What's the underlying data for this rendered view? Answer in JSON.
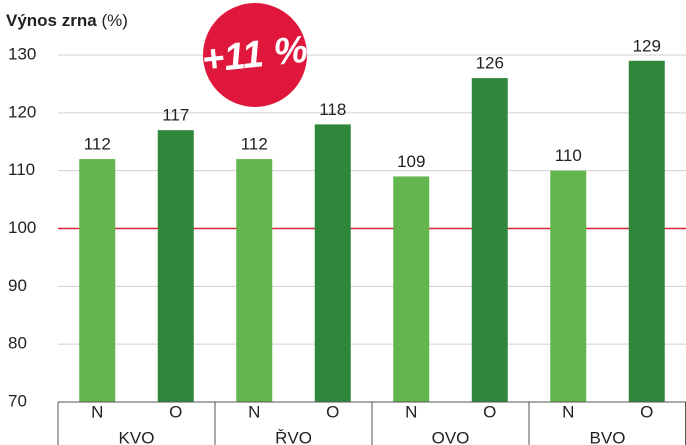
{
  "chart_data": {
    "type": "bar",
    "y_label": "Výnos zrna",
    "y_unit": "(%)",
    "annotation": "+11 %",
    "annotation_color": "#e0173c",
    "categories": [
      "KVO",
      "ŘVO",
      "OVO",
      "BVO"
    ],
    "series": [
      {
        "name": "N",
        "color": "#63b54d",
        "values": [
          112,
          112,
          109,
          110
        ]
      },
      {
        "name": "O",
        "color": "#2e873a",
        "values": [
          117,
          118,
          126,
          129
        ]
      }
    ],
    "ylim": [
      70,
      130
    ],
    "yticks": [
      70,
      80,
      90,
      100,
      110,
      120,
      130
    ],
    "grid": true,
    "reference_line": 100,
    "reference_color": "#d9243a"
  }
}
